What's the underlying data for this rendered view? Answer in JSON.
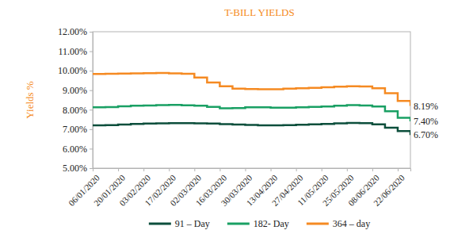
{
  "chart_data": {
    "type": "line",
    "title": "T-BILL YIELDS",
    "y_label": "Yields %",
    "categories": [
      "06/01/2020",
      null,
      "20/01/2020",
      null,
      "03/02/2020",
      null,
      "17/02/2020",
      null,
      "02/03/2020",
      null,
      "16/03/2020",
      null,
      "30/03/2020",
      null,
      "13/04/2020",
      null,
      "27/04/2020",
      null,
      "11/05/2020",
      null,
      "25/05/2020",
      null,
      "08/06/2020",
      null,
      "22/06/2020",
      null
    ],
    "series": [
      {
        "name": "91 – Day",
        "color": "#0d4f3c",
        "line_style": "step",
        "values": [
          7.2,
          7.21,
          7.24,
          7.27,
          7.29,
          7.3,
          7.31,
          7.31,
          7.3,
          7.29,
          7.26,
          7.24,
          7.22,
          7.2,
          7.2,
          7.21,
          7.23,
          7.25,
          7.27,
          7.3,
          7.32,
          7.31,
          7.25,
          7.08,
          6.9,
          6.7
        ]
      },
      {
        "name": "182- Day",
        "color": "#1aa064",
        "line_style": "step",
        "values": [
          8.12,
          8.13,
          8.17,
          8.2,
          8.22,
          8.24,
          8.25,
          8.23,
          8.2,
          8.14,
          8.07,
          8.08,
          8.12,
          8.12,
          8.1,
          8.1,
          8.12,
          8.14,
          8.16,
          8.2,
          8.24,
          8.22,
          8.16,
          7.92,
          7.58,
          7.4
        ]
      },
      {
        "name": "364 – day",
        "color": "#f58a22",
        "line_style": "step",
        "values": [
          9.83,
          9.84,
          9.85,
          9.86,
          9.87,
          9.88,
          9.86,
          9.84,
          9.65,
          9.4,
          9.2,
          9.08,
          9.06,
          9.05,
          9.05,
          9.08,
          9.1,
          9.12,
          9.15,
          9.18,
          9.2,
          9.19,
          9.1,
          8.85,
          8.45,
          8.19
        ]
      }
    ],
    "ylim": [
      5,
      12
    ],
    "yticks": [
      {
        "value": 5,
        "label": "5.00%"
      },
      {
        "value": 6,
        "label": "6.00%"
      },
      {
        "value": 7,
        "label": "7.00%"
      },
      {
        "value": 8,
        "label": "8.00%"
      },
      {
        "value": 9,
        "label": "9.00%"
      },
      {
        "value": 10,
        "label": "10.00%"
      },
      {
        "value": 11,
        "label": "11.00%"
      },
      {
        "value": 12,
        "label": "12.00%"
      }
    ],
    "annotations": [
      {
        "text": "8.19%",
        "y": 8.19
      },
      {
        "text": "7.40%",
        "y": 7.4
      },
      {
        "text": "6.70%",
        "y": 6.7
      }
    ],
    "grid": false,
    "legend": "bottom"
  }
}
